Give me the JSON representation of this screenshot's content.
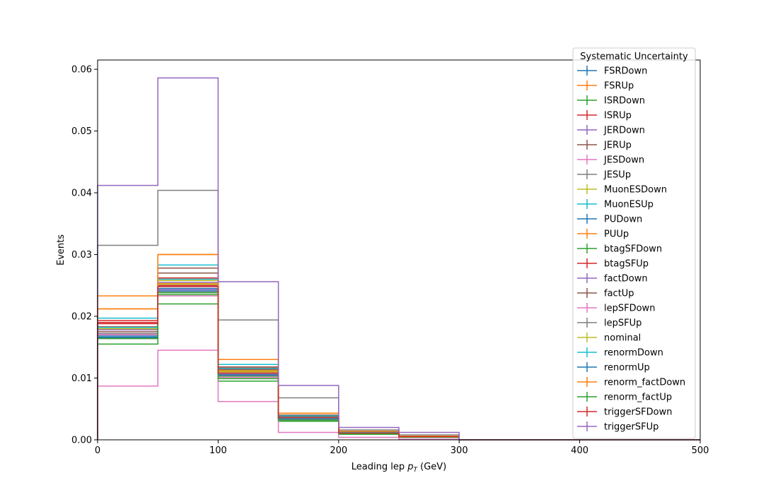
{
  "chart_data": {
    "type": "step",
    "xlabel": "Leading lep",
    "xlabel_sub": "T",
    "xlabel_unit": " (GeV)",
    "xlabel_var": "p",
    "ylabel": "Events",
    "xlim": [
      0,
      500
    ],
    "ylim": [
      0,
      0.0615
    ],
    "x_ticks": [
      "0",
      "100",
      "200",
      "300",
      "400",
      "500"
    ],
    "y_ticks": [
      "0.00",
      "0.01",
      "0.02",
      "0.03",
      "0.04",
      "0.05",
      "0.06"
    ],
    "bin_edges": [
      0,
      50,
      100,
      150,
      200,
      250,
      300,
      350,
      400,
      450,
      500
    ],
    "grid": false,
    "legend": {
      "title": "Systematic Uncertainty",
      "placement": "top-right"
    },
    "series": [
      {
        "name": "FSRDown",
        "color": "#1f77b4",
        "values": [
          0.0165,
          0.0245,
          0.0105,
          0.0032,
          0.001,
          0.0005,
          0,
          0,
          0,
          0
        ]
      },
      {
        "name": "FSRUp",
        "color": "#ff7f0e",
        "values": [
          0.0212,
          0.03,
          0.013,
          0.0043,
          0.0014,
          0.0006,
          0,
          0,
          0,
          0
        ]
      },
      {
        "name": "ISRDown",
        "color": "#2ca02c",
        "values": [
          0.0155,
          0.022,
          0.0095,
          0.003,
          0.0009,
          0.0004,
          0,
          0,
          0,
          0
        ]
      },
      {
        "name": "ISRUp",
        "color": "#d62728",
        "values": [
          0.0193,
          0.025,
          0.011,
          0.0037,
          0.0012,
          0.0005,
          0,
          0,
          0,
          0
        ]
      },
      {
        "name": "JERDown",
        "color": "#9467bd",
        "values": [
          0.0178,
          0.0255,
          0.0112,
          0.0036,
          0.0011,
          0.0005,
          0,
          0,
          0,
          0
        ]
      },
      {
        "name": "JERUp",
        "color": "#8c564b",
        "values": [
          0.0183,
          0.0278,
          0.0118,
          0.004,
          0.0013,
          0.0006,
          0,
          0,
          0,
          0
        ]
      },
      {
        "name": "JESDown",
        "color": "#e377c2",
        "values": [
          0.0087,
          0.0145,
          0.0062,
          0.0012,
          0.0004,
          0.0001,
          0,
          0,
          0,
          0
        ]
      },
      {
        "name": "JESUp",
        "color": "#7f7f7f",
        "values": [
          0.0315,
          0.0404,
          0.0194,
          0.0068,
          0.0016,
          0.0008,
          0,
          0,
          0,
          0
        ]
      },
      {
        "name": "MuonESDown",
        "color": "#bcbd22",
        "values": [
          0.018,
          0.0258,
          0.0113,
          0.0037,
          0.0011,
          0.0005,
          0,
          0,
          0,
          0
        ]
      },
      {
        "name": "MuonESUp",
        "color": "#17becf",
        "values": [
          0.0197,
          0.0283,
          0.0122,
          0.0039,
          0.0012,
          0.0006,
          0,
          0,
          0,
          0
        ]
      },
      {
        "name": "PUDown",
        "color": "#1f77b4",
        "values": [
          0.0168,
          0.0248,
          0.0108,
          0.0034,
          0.001,
          0.0005,
          0,
          0,
          0,
          0
        ]
      },
      {
        "name": "PUUp",
        "color": "#ff7f0e",
        "values": [
          0.0233,
          0.0253,
          0.0111,
          0.0038,
          0.0012,
          0.0006,
          0,
          0,
          0,
          0
        ]
      },
      {
        "name": "btagSFDown",
        "color": "#2ca02c",
        "values": [
          0.0164,
          0.0238,
          0.0103,
          0.0033,
          0.001,
          0.0005,
          0,
          0,
          0,
          0
        ]
      },
      {
        "name": "btagSFUp",
        "color": "#d62728",
        "values": [
          0.019,
          0.0262,
          0.0114,
          0.0037,
          0.0012,
          0.0006,
          0,
          0,
          0,
          0
        ]
      },
      {
        "name": "factDown",
        "color": "#9467bd",
        "values": [
          0.0172,
          0.0243,
          0.0106,
          0.0034,
          0.0011,
          0.0005,
          0,
          0,
          0,
          0
        ]
      },
      {
        "name": "factUp",
        "color": "#8c564b",
        "values": [
          0.0175,
          0.027,
          0.0116,
          0.0038,
          0.0012,
          0.0006,
          0,
          0,
          0,
          0
        ]
      },
      {
        "name": "lepSFDown",
        "color": "#e377c2",
        "values": [
          0.017,
          0.0233,
          0.0101,
          0.0033,
          0.001,
          0.0005,
          0,
          0,
          0,
          0
        ]
      },
      {
        "name": "lepSFUp",
        "color": "#7f7f7f",
        "values": [
          0.0172,
          0.024,
          0.0104,
          0.0034,
          0.001,
          0.0005,
          0,
          0,
          0,
          0
        ]
      },
      {
        "name": "nominal",
        "color": "#bcbd22",
        "values": [
          0.018,
          0.0252,
          0.011,
          0.0036,
          0.0011,
          0.0005,
          0,
          0,
          0,
          0
        ]
      },
      {
        "name": "renormDown",
        "color": "#17becf",
        "values": [
          0.0182,
          0.026,
          0.0115,
          0.0037,
          0.0012,
          0.0006,
          0,
          0,
          0,
          0
        ]
      },
      {
        "name": "renormUp",
        "color": "#1f77b4",
        "values": [
          0.0166,
          0.0241,
          0.0105,
          0.0034,
          0.001,
          0.0005,
          0,
          0,
          0,
          0
        ]
      },
      {
        "name": "renorm_factDown",
        "color": "#ff7f0e",
        "values": [
          0.0212,
          0.03,
          0.013,
          0.0043,
          0.0014,
          0.0006,
          0,
          0,
          0,
          0
        ]
      },
      {
        "name": "renorm_factUp",
        "color": "#2ca02c",
        "values": [
          0.0164,
          0.0235,
          0.0099,
          0.0032,
          0.001,
          0.0005,
          0,
          0,
          0,
          0
        ]
      },
      {
        "name": "triggerSFDown",
        "color": "#d62728",
        "values": [
          0.0188,
          0.0248,
          0.0108,
          0.0036,
          0.0011,
          0.0005,
          0,
          0,
          0,
          0
        ]
      },
      {
        "name": "triggerSFUp",
        "color": "#9467bd",
        "values": [
          0.0412,
          0.0586,
          0.0256,
          0.0088,
          0.002,
          0.0012,
          0,
          0,
          0,
          0
        ]
      }
    ]
  }
}
